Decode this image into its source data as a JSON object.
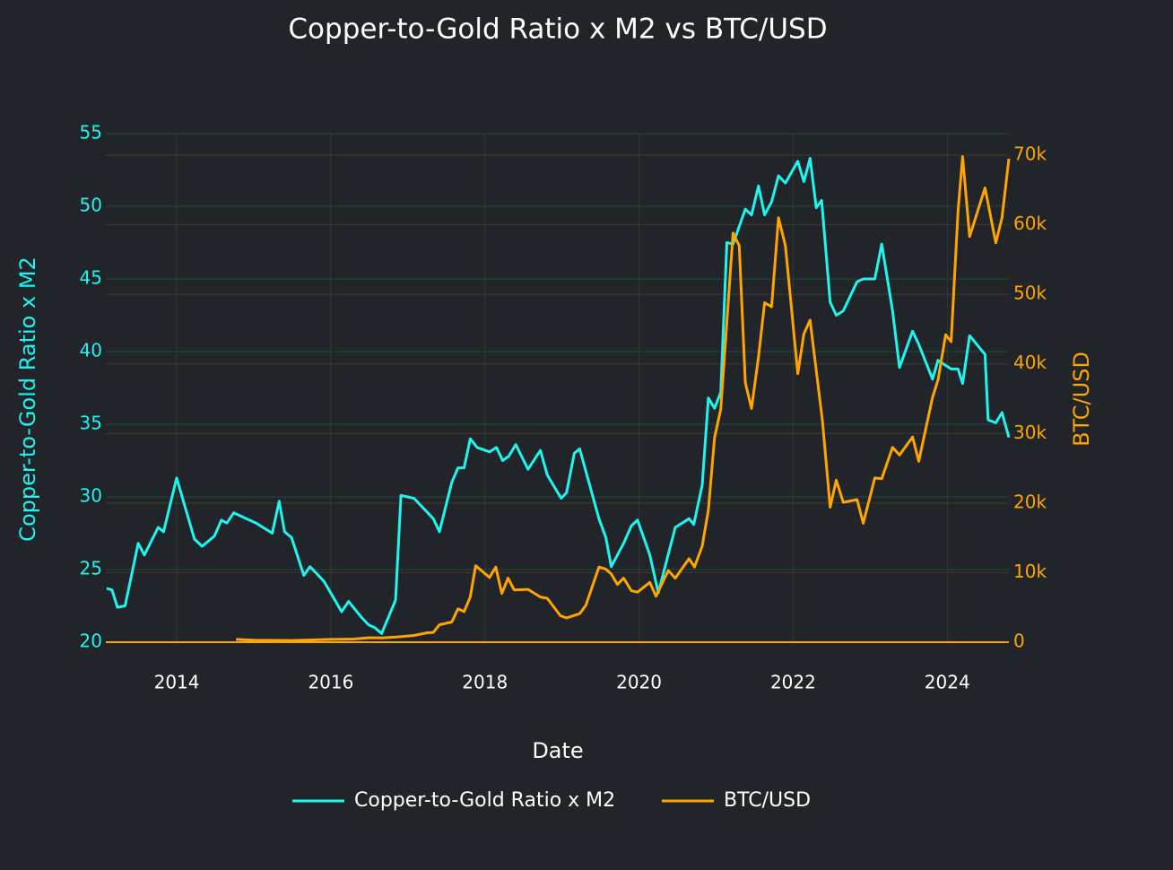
{
  "chart_data": {
    "type": "line",
    "title": "Copper-to-Gold Ratio x M2 vs BTC/USD",
    "xlabel": "Date",
    "ylabel": "Copper-to-Gold Ratio x M2",
    "y2label": "BTC/USD",
    "xlim": [
      2013.08,
      2024.8
    ],
    "xticks": [
      2014,
      2016,
      2018,
      2020,
      2022,
      2024
    ],
    "ylim": [
      20,
      55
    ],
    "yticks": [
      20,
      25,
      30,
      35,
      40,
      45,
      50,
      55
    ],
    "y2lim": [
      0,
      73100
    ],
    "y2ticks": [
      0,
      {
        "value": 10000,
        "label": "10k"
      },
      {
        "value": 20000,
        "label": "20k"
      },
      {
        "value": 30000,
        "label": "30k"
      },
      {
        "value": 40000,
        "label": "40k"
      },
      {
        "value": 50000,
        "label": "50k"
      },
      {
        "value": 60000,
        "label": "60k"
      },
      {
        "value": 70000,
        "label": "70k"
      }
    ],
    "grid": true,
    "legend": "bottom",
    "series": [
      {
        "name": "Copper-to-Gold Ratio x M2",
        "color": "#1ff5f0",
        "x": [
          2013.09,
          2013.16,
          2013.23,
          2013.33,
          2013.5,
          2013.58,
          2013.76,
          2013.83,
          2014.0,
          2014.23,
          2014.33,
          2014.49,
          2014.58,
          2014.65,
          2014.74,
          2015.03,
          2015.24,
          2015.33,
          2015.4,
          2015.49,
          2015.65,
          2015.73,
          2015.91,
          2016.14,
          2016.23,
          2016.4,
          2016.49,
          2016.57,
          2016.66,
          2016.84,
          2016.91,
          2017.08,
          2017.33,
          2017.41,
          2017.57,
          2017.65,
          2017.73,
          2017.81,
          2017.9,
          2018.06,
          2018.15,
          2018.23,
          2018.31,
          2018.4,
          2018.56,
          2018.72,
          2018.81,
          2018.99,
          2019.06,
          2019.16,
          2019.23,
          2019.48,
          2019.57,
          2019.64,
          2019.72,
          2019.8,
          2019.9,
          2019.98,
          2020.14,
          2020.25,
          2020.47,
          2020.65,
          2020.71,
          2020.82,
          2020.9,
          2020.98,
          2021.06,
          2021.14,
          2021.22,
          2021.38,
          2021.46,
          2021.55,
          2021.63,
          2021.72,
          2021.81,
          2021.9,
          2022.06,
          2022.14,
          2022.22,
          2022.3,
          2022.37,
          2022.48,
          2022.56,
          2022.65,
          2022.83,
          2022.91,
          2023.06,
          2023.15,
          2023.29,
          2023.38,
          2023.55,
          2023.63,
          2023.81,
          2023.88,
          2024.05,
          2024.14,
          2024.2,
          2024.29,
          2024.49,
          2024.53,
          2024.63,
          2024.71,
          2024.8
        ],
        "values": [
          23.7,
          23.6,
          22.4,
          22.5,
          26.8,
          26.0,
          27.9,
          27.6,
          31.3,
          27.1,
          26.6,
          27.3,
          28.4,
          28.2,
          28.9,
          28.2,
          27.5,
          29.7,
          27.6,
          27.2,
          24.6,
          25.2,
          24.2,
          22.1,
          22.8,
          21.7,
          21.2,
          21.0,
          20.6,
          22.9,
          30.1,
          29.9,
          28.5,
          27.6,
          31.0,
          32.0,
          32.0,
          34.0,
          33.4,
          33.1,
          33.4,
          32.5,
          32.8,
          33.6,
          31.9,
          33.2,
          31.5,
          29.9,
          30.3,
          33.0,
          33.3,
          28.5,
          27.2,
          25.2,
          26.0,
          26.8,
          28.0,
          28.4,
          26.0,
          23.4,
          27.9,
          28.5,
          28.1,
          30.8,
          36.8,
          36.1,
          37.2,
          47.5,
          47.4,
          49.8,
          49.4,
          51.4,
          49.4,
          50.3,
          52.1,
          51.6,
          53.1,
          51.7,
          53.3,
          49.9,
          50.4,
          43.4,
          42.5,
          42.8,
          44.8,
          45.0,
          45.0,
          47.4,
          42.8,
          38.9,
          41.4,
          40.5,
          38.1,
          39.4,
          38.8,
          38.8,
          37.8,
          41.1,
          39.8,
          35.3,
          35.1,
          35.8,
          34.1
        ]
      },
      {
        "name": "BTC/USD",
        "color": "#ffa500",
        "axis": "y2",
        "x": [
          2014.77,
          2015.0,
          2015.5,
          2016.0,
          2016.3,
          2016.5,
          2016.66,
          2016.85,
          2017.08,
          2017.25,
          2017.33,
          2017.41,
          2017.57,
          2017.65,
          2017.73,
          2017.81,
          2017.88,
          2018.06,
          2018.14,
          2018.22,
          2018.3,
          2018.38,
          2018.56,
          2018.72,
          2018.81,
          2018.98,
          2019.06,
          2019.23,
          2019.31,
          2019.48,
          2019.57,
          2019.64,
          2019.72,
          2019.8,
          2019.9,
          2019.98,
          2020.14,
          2020.22,
          2020.38,
          2020.47,
          2020.65,
          2020.72,
          2020.82,
          2020.9,
          2020.98,
          2021.06,
          2021.14,
          2021.22,
          2021.3,
          2021.38,
          2021.46,
          2021.55,
          2021.63,
          2021.72,
          2021.81,
          2021.9,
          2022.06,
          2022.14,
          2022.22,
          2022.38,
          2022.48,
          2022.56,
          2022.65,
          2022.83,
          2022.91,
          2023.06,
          2023.15,
          2023.29,
          2023.38,
          2023.55,
          2023.63,
          2023.81,
          2023.88,
          2023.98,
          2024.05,
          2024.14,
          2024.2,
          2024.29,
          2024.49,
          2024.63,
          2024.71,
          2024.8
        ],
        "values": [
          400,
          300,
          250,
          400,
          450,
          650,
          600,
          750,
          970,
          1350,
          1400,
          2500,
          2900,
          4800,
          4400,
          6500,
          11000,
          9300,
          10800,
          7000,
          9200,
          7500,
          7600,
          6500,
          6300,
          3800,
          3500,
          4100,
          5300,
          10800,
          10500,
          9800,
          8300,
          9200,
          7400,
          7200,
          8600,
          6600,
          10300,
          9200,
          12000,
          10800,
          13800,
          19000,
          29400,
          33500,
          46000,
          58800,
          57000,
          37300,
          33600,
          41000,
          48800,
          48200,
          61000,
          57000,
          38600,
          44300,
          46300,
          31800,
          19400,
          23300,
          20100,
          20500,
          17100,
          23600,
          23500,
          28000,
          26900,
          29500,
          26000,
          35200,
          37700,
          44200,
          43200,
          62000,
          69800,
          58300,
          65300,
          57400,
          61000,
          69500
        ]
      }
    ]
  }
}
